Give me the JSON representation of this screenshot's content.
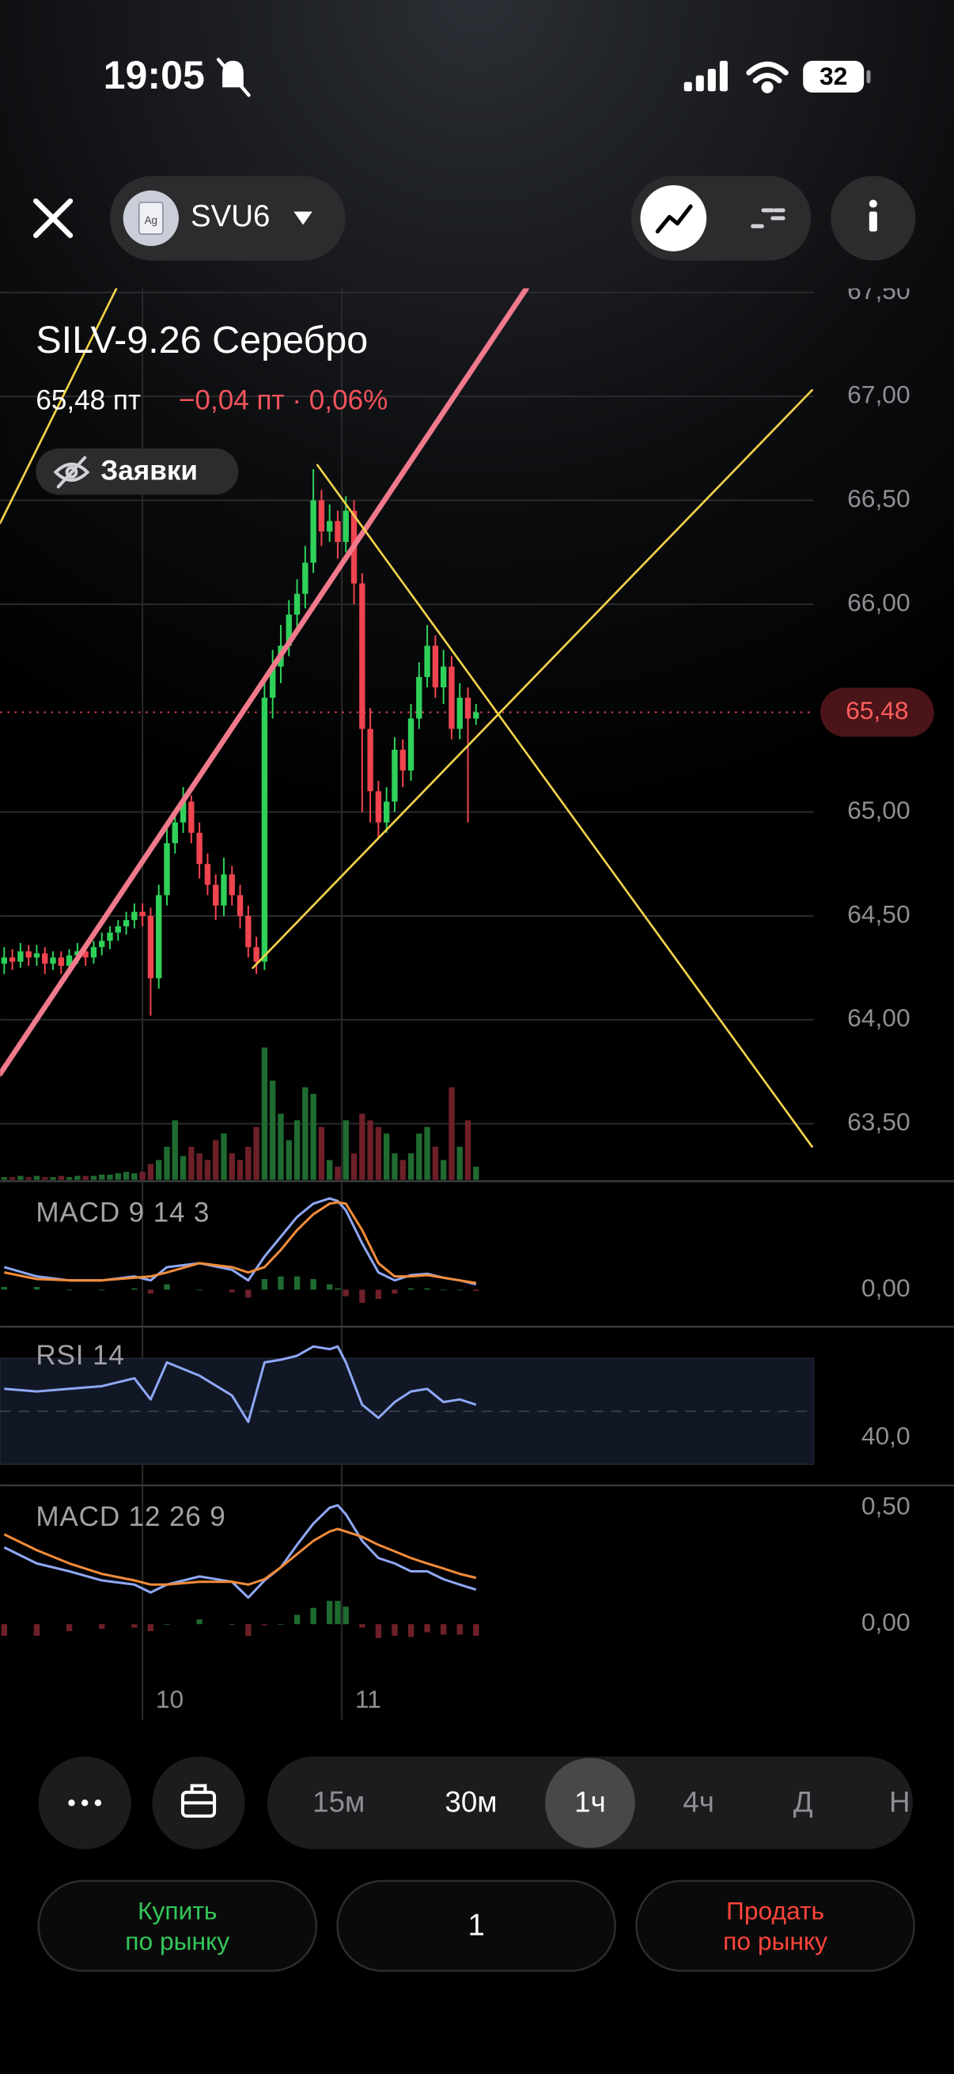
{
  "status_bar": {
    "time": "19:05",
    "battery": "32"
  },
  "header": {
    "icon_label": "Ag",
    "ticker": "SVU6"
  },
  "instrument": {
    "title": "SILV-9.26 Серебро",
    "price": "65,48 пт",
    "change": "−0,04 пт · 0,06%",
    "orders_chip": "Заявки"
  },
  "chart_data": {
    "type": "candlestick",
    "grid": true,
    "up_color": "#2fd15a",
    "down_color": "#f0444f",
    "xlim": [
      -0.5,
      99.5
    ],
    "xticks": [
      {
        "value": 17,
        "label": "10"
      },
      {
        "value": 41.5,
        "label": "11"
      }
    ],
    "ylim": [
      63.23,
      67.52
    ],
    "yticks": [
      {
        "value": 67.5,
        "label": "67,50"
      },
      {
        "value": 67,
        "label": "67,00"
      },
      {
        "value": 66.5,
        "label": "66,50"
      },
      {
        "value": 66,
        "label": "66,00"
      },
      {
        "value": 65,
        "label": "65,00"
      },
      {
        "value": 64.5,
        "label": "64,50"
      },
      {
        "value": 64,
        "label": "64,00"
      },
      {
        "value": 63.5,
        "label": "63,50"
      }
    ],
    "current_price": {
      "value": 65.48,
      "label": "65,48"
    },
    "candles": {
      "open": [
        64.27,
        64.3,
        64.28,
        64.33,
        64.3,
        64.32,
        64.27,
        64.3,
        64.26,
        64.31,
        64.33,
        64.3,
        64.35,
        64.38,
        64.42,
        64.45,
        64.48,
        64.52,
        64.5,
        64.2,
        64.6,
        64.85,
        64.95,
        65.05,
        64.9,
        64.75,
        64.65,
        64.55,
        64.7,
        64.6,
        64.5,
        64.35,
        64.28,
        65.55,
        65.7,
        65.8,
        65.95,
        66.05,
        66.2,
        66.5,
        66.35,
        66.4,
        66.3,
        66.45,
        66.1,
        65.4,
        65.1,
        64.95,
        65.05,
        65.3,
        65.2,
        65.45,
        65.65,
        65.8,
        65.6,
        65.7,
        65.4,
        65.55,
        65.45
      ],
      "high": [
        64.35,
        64.34,
        64.37,
        64.36,
        64.36,
        64.35,
        64.33,
        64.33,
        64.34,
        64.37,
        64.37,
        64.38,
        64.42,
        64.45,
        64.48,
        64.52,
        64.56,
        64.56,
        64.54,
        64.65,
        64.92,
        65.0,
        65.12,
        65.08,
        64.95,
        64.8,
        64.7,
        64.78,
        64.74,
        64.65,
        64.55,
        64.4,
        65.62,
        65.78,
        65.9,
        66.02,
        66.12,
        66.28,
        66.65,
        66.55,
        66.48,
        66.45,
        66.52,
        66.5,
        66.15,
        65.5,
        65.15,
        65.12,
        65.36,
        65.35,
        65.52,
        65.72,
        65.9,
        65.85,
        65.78,
        65.75,
        65.62,
        65.6,
        65.52
      ],
      "low": [
        64.22,
        64.24,
        64.25,
        64.26,
        64.26,
        64.22,
        64.24,
        64.22,
        64.23,
        64.27,
        64.26,
        64.27,
        64.31,
        64.34,
        64.38,
        64.41,
        64.44,
        64.45,
        64.02,
        64.15,
        64.55,
        64.8,
        64.9,
        64.85,
        64.68,
        64.6,
        64.48,
        64.5,
        64.55,
        64.44,
        64.3,
        64.22,
        64.24,
        65.45,
        65.62,
        65.75,
        65.88,
        65.98,
        66.15,
        66.28,
        66.3,
        66.22,
        66.25,
        66.0,
        65.0,
        64.95,
        64.88,
        64.9,
        65.0,
        65.12,
        65.15,
        65.4,
        65.6,
        65.55,
        65.52,
        65.35,
        65.35,
        64.95,
        65.42
      ],
      "close": [
        64.3,
        64.28,
        64.33,
        64.3,
        64.32,
        64.27,
        64.3,
        64.26,
        64.31,
        64.33,
        64.3,
        64.35,
        64.38,
        64.42,
        64.45,
        64.48,
        64.52,
        64.5,
        64.2,
        64.6,
        64.85,
        64.95,
        65.05,
        64.9,
        64.75,
        64.65,
        64.55,
        64.7,
        64.6,
        64.5,
        64.35,
        64.28,
        65.55,
        65.7,
        65.8,
        65.95,
        66.05,
        66.2,
        66.5,
        66.35,
        66.4,
        66.3,
        66.45,
        66.1,
        65.4,
        65.1,
        64.95,
        65.05,
        65.3,
        65.2,
        65.45,
        65.65,
        65.8,
        65.6,
        65.7,
        65.4,
        65.55,
        65.45,
        65.48
      ]
    },
    "volume": {
      "ylim": [
        0,
        110
      ],
      "up_color": "#1f6b30",
      "down_color": "#6e2028",
      "values": [
        2,
        2,
        3,
        2,
        3,
        2,
        2,
        3,
        2,
        3,
        3,
        3,
        4,
        4,
        5,
        6,
        5,
        6,
        12,
        15,
        25,
        45,
        18,
        25,
        20,
        15,
        30,
        35,
        20,
        15,
        25,
        40,
        100,
        75,
        50,
        30,
        45,
        70,
        65,
        40,
        15,
        10,
        45,
        20,
        50,
        45,
        40,
        35,
        20,
        15,
        20,
        35,
        40,
        25,
        15,
        70,
        25,
        45,
        10
      ]
    },
    "trendlines": [
      {
        "color": "#f07a8c",
        "width": 4,
        "points": [
          [
            -0.5,
            63.74
          ],
          [
            64.2,
            67.52
          ]
        ]
      },
      {
        "color": "#f2d24a",
        "width": 1.6,
        "points": [
          [
            30.56,
            64.25
          ],
          [
            99.3,
            67.03
          ]
        ]
      },
      {
        "color": "#f2d24a",
        "width": 1.6,
        "points": [
          [
            38.5,
            66.67
          ],
          [
            99.3,
            63.39
          ]
        ]
      },
      {
        "color": "#f2d24a",
        "width": 1.6,
        "points": [
          [
            -0.5,
            66.39
          ],
          [
            13.8,
            67.52
          ]
        ]
      }
    ],
    "indicator_x": [
      0,
      4,
      8,
      12,
      16,
      18,
      20,
      24,
      28,
      30,
      32,
      34,
      36,
      38,
      40,
      41,
      42,
      44,
      46,
      48,
      50,
      52,
      54,
      56,
      58
    ],
    "indicators": [
      {
        "title": "MACD 9 14 3",
        "ylim": [
          -0.14,
          0.4
        ],
        "yticks": [
          {
            "value": 0,
            "label": "0,00"
          }
        ],
        "histogram": [
          0.01,
          0.01,
          0,
          0,
          0.005,
          -0.015,
          0.02,
          0,
          -0.01,
          -0.03,
          0.04,
          0.05,
          0.05,
          0.04,
          0.02,
          0.005,
          -0.025,
          -0.05,
          -0.035,
          -0.015,
          0.005,
          0.005,
          0,
          0,
          -0.005
        ],
        "lines": [
          {
            "color": "#8fa8f5",
            "values": [
              0.085,
              0.05,
              0.035,
              0.035,
              0.05,
              0.035,
              0.085,
              0.1,
              0.075,
              0.035,
              0.125,
              0.2,
              0.275,
              0.325,
              0.345,
              0.335,
              0.3,
              0.175,
              0.065,
              0.035,
              0.055,
              0.06,
              0.045,
              0.035,
              0.02
            ]
          },
          {
            "color": "#f28c3a",
            "values": [
              0.065,
              0.04,
              0.035,
              0.035,
              0.045,
              0.05,
              0.065,
              0.1,
              0.085,
              0.065,
              0.085,
              0.15,
              0.225,
              0.285,
              0.325,
              0.33,
              0.325,
              0.225,
              0.1,
              0.05,
              0.05,
              0.055,
              0.045,
              0.035,
              0.025
            ]
          }
        ]
      },
      {
        "title": "RSI 14",
        "ylim": [
          22.5,
          82
        ],
        "yticks": [
          {
            "value": 40,
            "label": "40,0"
          }
        ],
        "band": [
          30,
          70
        ],
        "midline": 50,
        "lines": [
          {
            "color": "#8fa8f5",
            "values": [
              58.5,
              57.5,
              58.5,
              59.5,
              62.5,
              54.5,
              68.5,
              63.5,
              56,
              46,
              68.5,
              69.5,
              71,
              74.5,
              73.5,
              74.5,
              68.5,
              52.5,
              47.5,
              53.5,
              57.5,
              58.5,
              53.5,
              54.5,
              52.5
            ]
          }
        ]
      },
      {
        "title": "MACD 12 26 9",
        "ylim": [
          -0.41,
          0.585
        ],
        "yticks": [
          {
            "value": 0.5,
            "label": "0,50"
          },
          {
            "value": 0,
            "label": "0,00"
          }
        ],
        "histogram": [
          -0.05,
          -0.05,
          -0.03,
          -0.02,
          -0.015,
          -0.03,
          0,
          0.02,
          0,
          -0.05,
          -0.005,
          0,
          0.04,
          0.07,
          0.1,
          0.1,
          0.075,
          -0.015,
          -0.06,
          -0.05,
          -0.055,
          -0.035,
          -0.045,
          -0.045,
          -0.05
        ],
        "lines": [
          {
            "color": "#8fa8f5",
            "values": [
              0.33,
              0.261,
              0.227,
              0.188,
              0.17,
              0.136,
              0.17,
              0.205,
              0.182,
              0.114,
              0.188,
              0.244,
              0.341,
              0.432,
              0.5,
              0.511,
              0.472,
              0.358,
              0.284,
              0.261,
              0.227,
              0.227,
              0.193,
              0.17,
              0.148
            ]
          },
          {
            "color": "#f28c3a",
            "values": [
              0.386,
              0.318,
              0.261,
              0.216,
              0.188,
              0.17,
              0.17,
              0.182,
              0.182,
              0.17,
              0.193,
              0.244,
              0.301,
              0.358,
              0.398,
              0.409,
              0.398,
              0.375,
              0.341,
              0.313,
              0.284,
              0.261,
              0.239,
              0.216,
              0.199
            ]
          }
        ]
      }
    ]
  },
  "toolbar": {
    "intervals": [
      "15м",
      "30м",
      "1ч",
      "4ч",
      "Д",
      "Н"
    ],
    "active_interval": 2
  },
  "actions": {
    "buy": [
      "Купить",
      "по рынку"
    ],
    "quantity": "1",
    "sell": [
      "Продать",
      "по рынку"
    ]
  }
}
